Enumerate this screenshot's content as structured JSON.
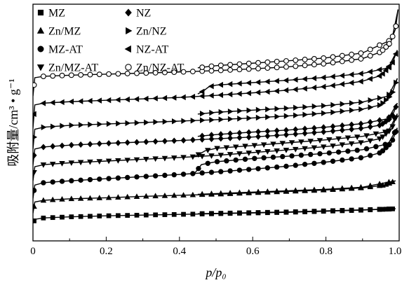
{
  "chart_data": {
    "type": "line",
    "title": "",
    "xlabel": "p/p₀",
    "ylabel": "吸附量/cm³ • g⁻¹",
    "xlim": [
      0,
      1.0
    ],
    "x_ticks": [
      "0",
      "0.2",
      "0.4",
      "0.6",
      "0.8",
      "1.0"
    ],
    "y_ticks": [],
    "y_units": "arbitrary offset (curves shifted vertically)",
    "grid": false,
    "legend_position": "top-left",
    "series": [
      {
        "name": "MZ",
        "marker": "square",
        "filled": true,
        "adsorption": [
          [
            0.0,
            1.0
          ],
          [
            0.005,
            2.1
          ],
          [
            0.03,
            2.5
          ],
          [
            0.1,
            2.8
          ],
          [
            0.2,
            3.1
          ],
          [
            0.3,
            3.3
          ],
          [
            0.4,
            3.5
          ],
          [
            0.5,
            3.7
          ],
          [
            0.6,
            3.9
          ],
          [
            0.7,
            4.1
          ],
          [
            0.8,
            4.4
          ],
          [
            0.9,
            4.7
          ],
          [
            0.97,
            5.0
          ],
          [
            0.99,
            5.1
          ]
        ],
        "desorption": [
          [
            0.99,
            5.1
          ],
          [
            0.9,
            4.8
          ],
          [
            0.8,
            4.5
          ],
          [
            0.7,
            4.2
          ],
          [
            0.6,
            4.0
          ],
          [
            0.5,
            3.8
          ],
          [
            0.45,
            3.7
          ]
        ]
      },
      {
        "name": "Zn/MZ",
        "marker": "triangle-up",
        "filled": true,
        "adsorption": [
          [
            0.0,
            3.8
          ],
          [
            0.005,
            7.0
          ],
          [
            0.03,
            7.5
          ],
          [
            0.1,
            7.9
          ],
          [
            0.2,
            8.2
          ],
          [
            0.3,
            8.6
          ],
          [
            0.4,
            8.9
          ],
          [
            0.5,
            9.2
          ],
          [
            0.6,
            9.6
          ],
          [
            0.7,
            10.0
          ],
          [
            0.8,
            10.4
          ],
          [
            0.9,
            11.0
          ],
          [
            0.96,
            11.8
          ],
          [
            0.99,
            13.0
          ]
        ],
        "desorption": [
          [
            0.99,
            13.0
          ],
          [
            0.9,
            11.2
          ],
          [
            0.8,
            10.6
          ],
          [
            0.7,
            10.2
          ],
          [
            0.6,
            9.8
          ],
          [
            0.5,
            9.4
          ],
          [
            0.45,
            9.2
          ]
        ]
      },
      {
        "name": "MZ-AT",
        "marker": "circle",
        "filled": true,
        "adsorption": [
          [
            0.0,
            8.0
          ],
          [
            0.005,
            11.8
          ],
          [
            0.03,
            12.5
          ],
          [
            0.1,
            13.0
          ],
          [
            0.2,
            13.6
          ],
          [
            0.3,
            14.2
          ],
          [
            0.4,
            14.8
          ],
          [
            0.5,
            15.5
          ],
          [
            0.6,
            16.3
          ],
          [
            0.7,
            17.2
          ],
          [
            0.8,
            18.3
          ],
          [
            0.9,
            19.6
          ],
          [
            0.95,
            21.0
          ],
          [
            0.98,
            24.0
          ],
          [
            0.995,
            28.0
          ]
        ],
        "desorption": [
          [
            0.995,
            28.0
          ],
          [
            0.97,
            23.5
          ],
          [
            0.9,
            21.8
          ],
          [
            0.8,
            20.8
          ],
          [
            0.7,
            20.0
          ],
          [
            0.6,
            19.3
          ],
          [
            0.5,
            18.4
          ],
          [
            0.46,
            17.6
          ],
          [
            0.45,
            16.2
          ],
          [
            0.44,
            15.0
          ]
        ]
      },
      {
        "name": "Zn/MZ-AT",
        "marker": "triangle-down",
        "filled": true,
        "adsorption": [
          [
            0.0,
            13.0
          ],
          [
            0.005,
            17.0
          ],
          [
            0.03,
            17.6
          ],
          [
            0.1,
            18.1
          ],
          [
            0.2,
            18.6
          ],
          [
            0.3,
            19.1
          ],
          [
            0.4,
            19.6
          ],
          [
            0.5,
            20.2
          ],
          [
            0.6,
            21.0
          ],
          [
            0.7,
            21.8
          ],
          [
            0.8,
            22.7
          ],
          [
            0.9,
            23.9
          ],
          [
            0.95,
            25.0
          ],
          [
            0.98,
            27.8
          ],
          [
            0.995,
            32.0
          ]
        ],
        "desorption": [
          [
            0.995,
            32.0
          ],
          [
            0.97,
            27.0
          ],
          [
            0.9,
            25.6
          ],
          [
            0.8,
            24.6
          ],
          [
            0.7,
            23.8
          ],
          [
            0.6,
            23.0
          ],
          [
            0.5,
            22.2
          ],
          [
            0.47,
            21.5
          ],
          [
            0.455,
            20.6
          ],
          [
            0.44,
            19.8
          ]
        ]
      },
      {
        "name": "NZ",
        "marker": "diamond",
        "filled": true,
        "adsorption": [
          [
            0.0,
            17.5
          ],
          [
            0.005,
            22.0
          ],
          [
            0.03,
            22.6
          ],
          [
            0.1,
            23.1
          ],
          [
            0.2,
            23.6
          ],
          [
            0.3,
            24.0
          ],
          [
            0.4,
            24.4
          ],
          [
            0.5,
            24.9
          ],
          [
            0.6,
            25.4
          ],
          [
            0.7,
            26.1
          ],
          [
            0.8,
            26.9
          ],
          [
            0.9,
            27.9
          ],
          [
            0.95,
            28.8
          ],
          [
            0.98,
            31.0
          ],
          [
            0.995,
            35.0
          ]
        ],
        "desorption": [
          [
            0.995,
            35.0
          ],
          [
            0.97,
            30.6
          ],
          [
            0.9,
            29.2
          ],
          [
            0.8,
            28.2
          ],
          [
            0.7,
            27.4
          ],
          [
            0.6,
            26.8
          ],
          [
            0.5,
            26.1
          ],
          [
            0.45,
            25.6
          ]
        ]
      },
      {
        "name": "Zn/NZ",
        "marker": "triangle-right",
        "filled": true,
        "adsorption": [
          [
            0.0,
            22.0
          ],
          [
            0.005,
            27.6
          ],
          [
            0.03,
            28.2
          ],
          [
            0.1,
            28.7
          ],
          [
            0.2,
            29.1
          ],
          [
            0.3,
            29.5
          ],
          [
            0.4,
            29.9
          ],
          [
            0.5,
            30.3
          ],
          [
            0.6,
            30.8
          ],
          [
            0.7,
            31.4
          ],
          [
            0.8,
            32.2
          ],
          [
            0.9,
            33.3
          ],
          [
            0.95,
            34.5
          ],
          [
            0.98,
            37.5
          ],
          [
            0.995,
            42.0
          ]
        ],
        "desorption": [
          [
            0.995,
            42.0
          ],
          [
            0.97,
            37.0
          ],
          [
            0.9,
            35.3
          ],
          [
            0.8,
            34.3
          ],
          [
            0.7,
            33.6
          ],
          [
            0.6,
            33.0
          ],
          [
            0.5,
            32.4
          ],
          [
            0.45,
            31.9
          ]
        ]
      },
      {
        "name": "NZ-AT",
        "marker": "triangle-left",
        "filled": true,
        "adsorption": [
          [
            0.0,
            28.0
          ],
          [
            0.005,
            34.5
          ],
          [
            0.03,
            35.0
          ],
          [
            0.1,
            35.4
          ],
          [
            0.2,
            35.8
          ],
          [
            0.3,
            36.2
          ],
          [
            0.4,
            36.6
          ],
          [
            0.5,
            37.2
          ],
          [
            0.6,
            37.9
          ],
          [
            0.7,
            38.7
          ],
          [
            0.8,
            39.7
          ],
          [
            0.9,
            41.2
          ],
          [
            0.95,
            42.8
          ],
          [
            0.98,
            46.0
          ],
          [
            0.995,
            50.0
          ]
        ],
        "desorption": [
          [
            0.995,
            50.0
          ],
          [
            0.97,
            45.0
          ],
          [
            0.9,
            43.4
          ],
          [
            0.8,
            42.3
          ],
          [
            0.7,
            41.5
          ],
          [
            0.6,
            40.8
          ],
          [
            0.5,
            40.1
          ],
          [
            0.48,
            39.6
          ],
          [
            0.465,
            38.4
          ],
          [
            0.45,
            37.6
          ]
        ]
      },
      {
        "name": "Zn/NZ-AT",
        "marker": "circle",
        "filled": false,
        "adsorption": [
          [
            0.0,
            37.0
          ],
          [
            0.005,
            42.2
          ],
          [
            0.03,
            42.6
          ],
          [
            0.1,
            42.9
          ],
          [
            0.2,
            43.2
          ],
          [
            0.3,
            43.5
          ],
          [
            0.4,
            43.8
          ],
          [
            0.5,
            44.2
          ],
          [
            0.6,
            44.7
          ],
          [
            0.7,
            45.3
          ],
          [
            0.8,
            46.2
          ],
          [
            0.9,
            47.6
          ],
          [
            0.95,
            49.5
          ],
          [
            0.975,
            52.0
          ],
          [
            0.99,
            56.0
          ],
          [
            0.997,
            61.5
          ]
        ],
        "desorption": [
          [
            0.997,
            61.5
          ],
          [
            0.98,
            53.0
          ],
          [
            0.9,
            49.2
          ],
          [
            0.8,
            47.8
          ],
          [
            0.7,
            47.0
          ],
          [
            0.6,
            46.3
          ],
          [
            0.5,
            45.6
          ],
          [
            0.45,
            45.0
          ]
        ]
      }
    ]
  }
}
